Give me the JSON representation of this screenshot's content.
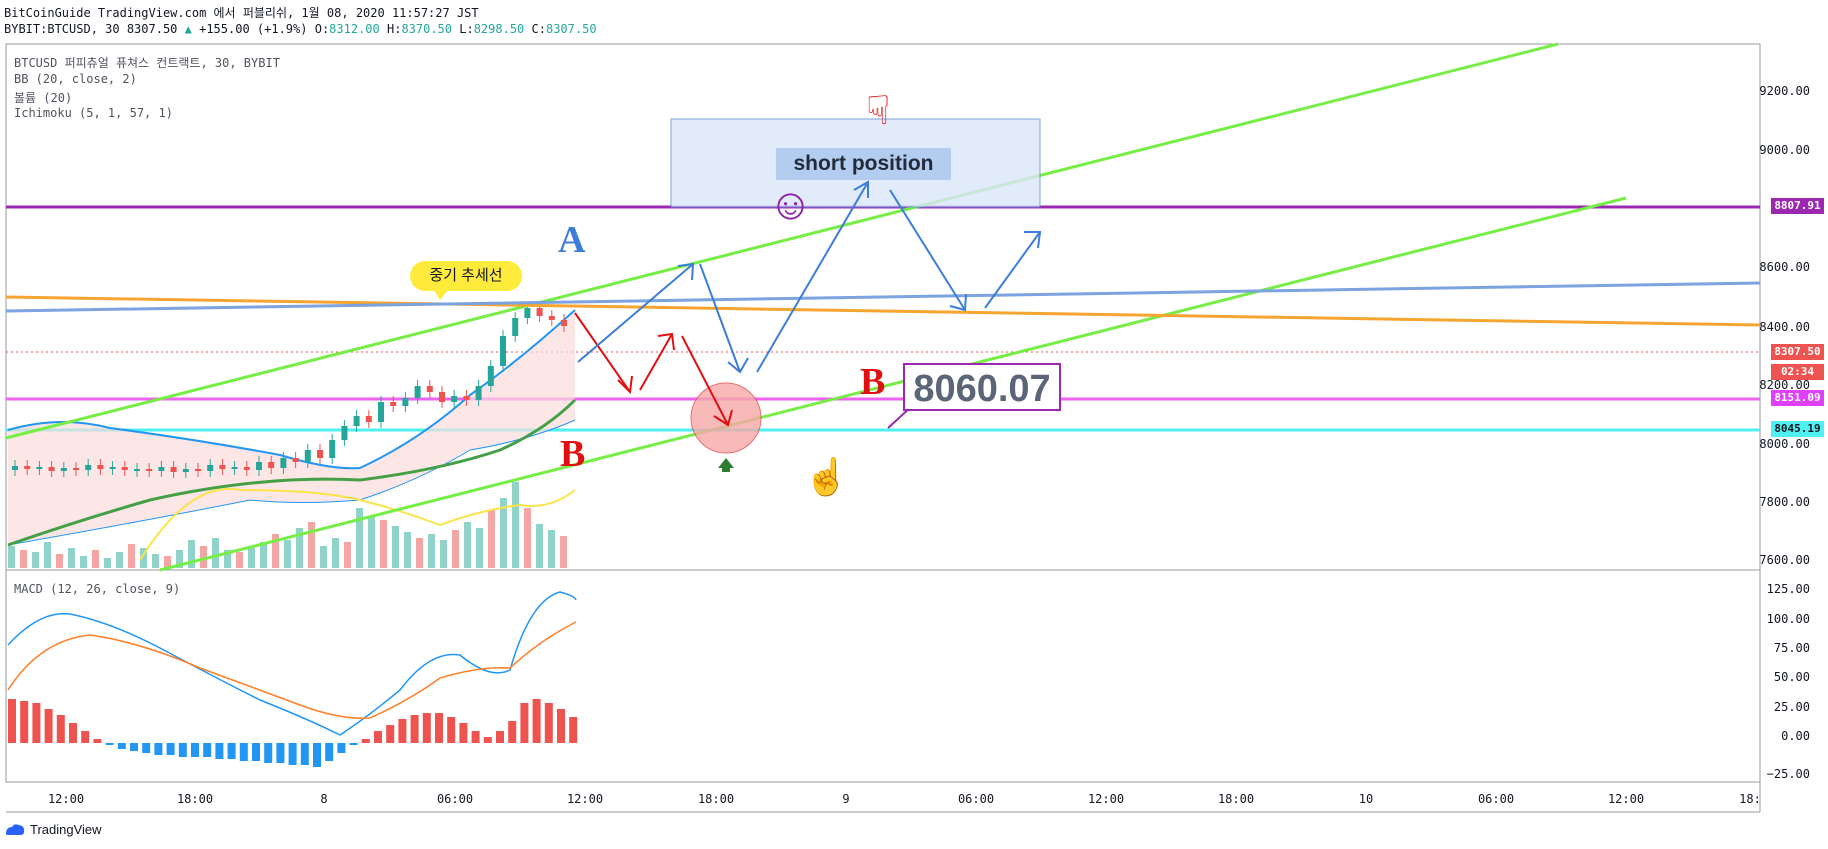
{
  "header": {
    "line1": "BitCoinGuide TradingView.com 에서 퍼블리쉬, 1월 08, 2020 11:57:27 JST",
    "symbol": "BYBIT:BTCUSD, 30",
    "last": "8307.50",
    "change": "+155.00 (+1.9%)",
    "o_label": "O:",
    "o": "8312.00",
    "h_label": "H:",
    "h": "8370.50",
    "l_label": "L:",
    "l": "8298.50",
    "c_label": "C:",
    "c": "8307.50"
  },
  "legend": {
    "title": "BTCUSD 퍼피츄얼 퓨쳐스 컨트랙트, 30, BYBIT",
    "bb": "BB (20, close, 2)",
    "volume": "볼륨 (20)",
    "ichimoku": "Ichimoku (5, 1, 57, 1)",
    "macd": "MACD (12, 26, close, 9)"
  },
  "price_axis": [
    "9200.00",
    "9000.00",
    "8600.00",
    "8400.00",
    "8200.00",
    "8000.00",
    "7800.00",
    "7600.00"
  ],
  "price_tags": [
    {
      "label": "8807.91",
      "color": "#9c27b0"
    },
    {
      "label": "8307.50",
      "color": "#ef5350"
    },
    {
      "label": "02:34",
      "color": "#ef5350"
    },
    {
      "label": "8151.09",
      "color": "#e040fb"
    },
    {
      "label": "8045.19",
      "color": "#26c6da"
    }
  ],
  "macd_axis": [
    "125.00",
    "100.00",
    "75.00",
    "50.00",
    "25.00",
    "0.00",
    "−25.00"
  ],
  "time_axis": [
    "12:00",
    "18:00",
    "8",
    "06:00",
    "12:00",
    "18:00",
    "9",
    "06:00",
    "12:00",
    "18:00",
    "10",
    "06:00",
    "12:00",
    "18:"
  ],
  "annotations": {
    "short_position": "short position",
    "price_callout": "8060.07",
    "trend_bubble": "중기 추세선",
    "label_a": "A",
    "label_b1": "B",
    "label_b2": "B"
  },
  "footer": {
    "brand": "TradingView"
  },
  "colors": {
    "upper_trend": "#76ee45",
    "orange_line": "#f5a530",
    "blue_line": "#7ba3e0",
    "purple_line": "#9c27b0",
    "magenta_line": "#ee62f0",
    "cyan_line": "#4ef0f0",
    "up": "#26a69a",
    "down": "#ef5350"
  }
}
